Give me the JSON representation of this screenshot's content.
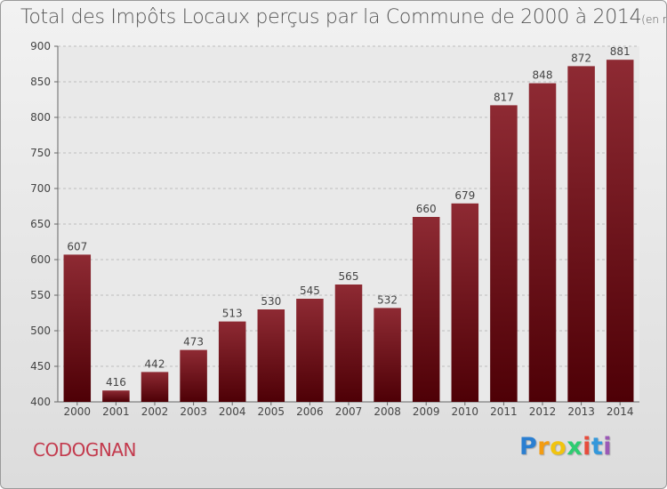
{
  "chart_data": {
    "type": "bar",
    "title": "Total des Impôts Locaux perçus par la Commune de 2000 à 2014",
    "unit": "(en milliers d'€)",
    "categories": [
      "2000",
      "2001",
      "2002",
      "2003",
      "2004",
      "2005",
      "2006",
      "2007",
      "2008",
      "2009",
      "2010",
      "2011",
      "2012",
      "2013",
      "2014"
    ],
    "values": [
      607,
      416,
      442,
      473,
      513,
      530,
      545,
      565,
      532,
      660,
      679,
      817,
      848,
      872,
      881
    ],
    "ylim": [
      400,
      900
    ],
    "yticks": [
      400,
      450,
      500,
      550,
      600,
      650,
      700,
      750,
      800,
      850,
      900
    ],
    "grid": true,
    "bar_color": "#7a1a22"
  },
  "commune": "CODOGNAN",
  "logo": {
    "letters": [
      "P",
      "r",
      "o",
      "x",
      "i",
      "t",
      "i"
    ],
    "colors": [
      "#2b7fd1",
      "#f39c12",
      "#f1c40f",
      "#2ecc71",
      "#e74c3c",
      "#3498db",
      "#9b59b6"
    ]
  }
}
